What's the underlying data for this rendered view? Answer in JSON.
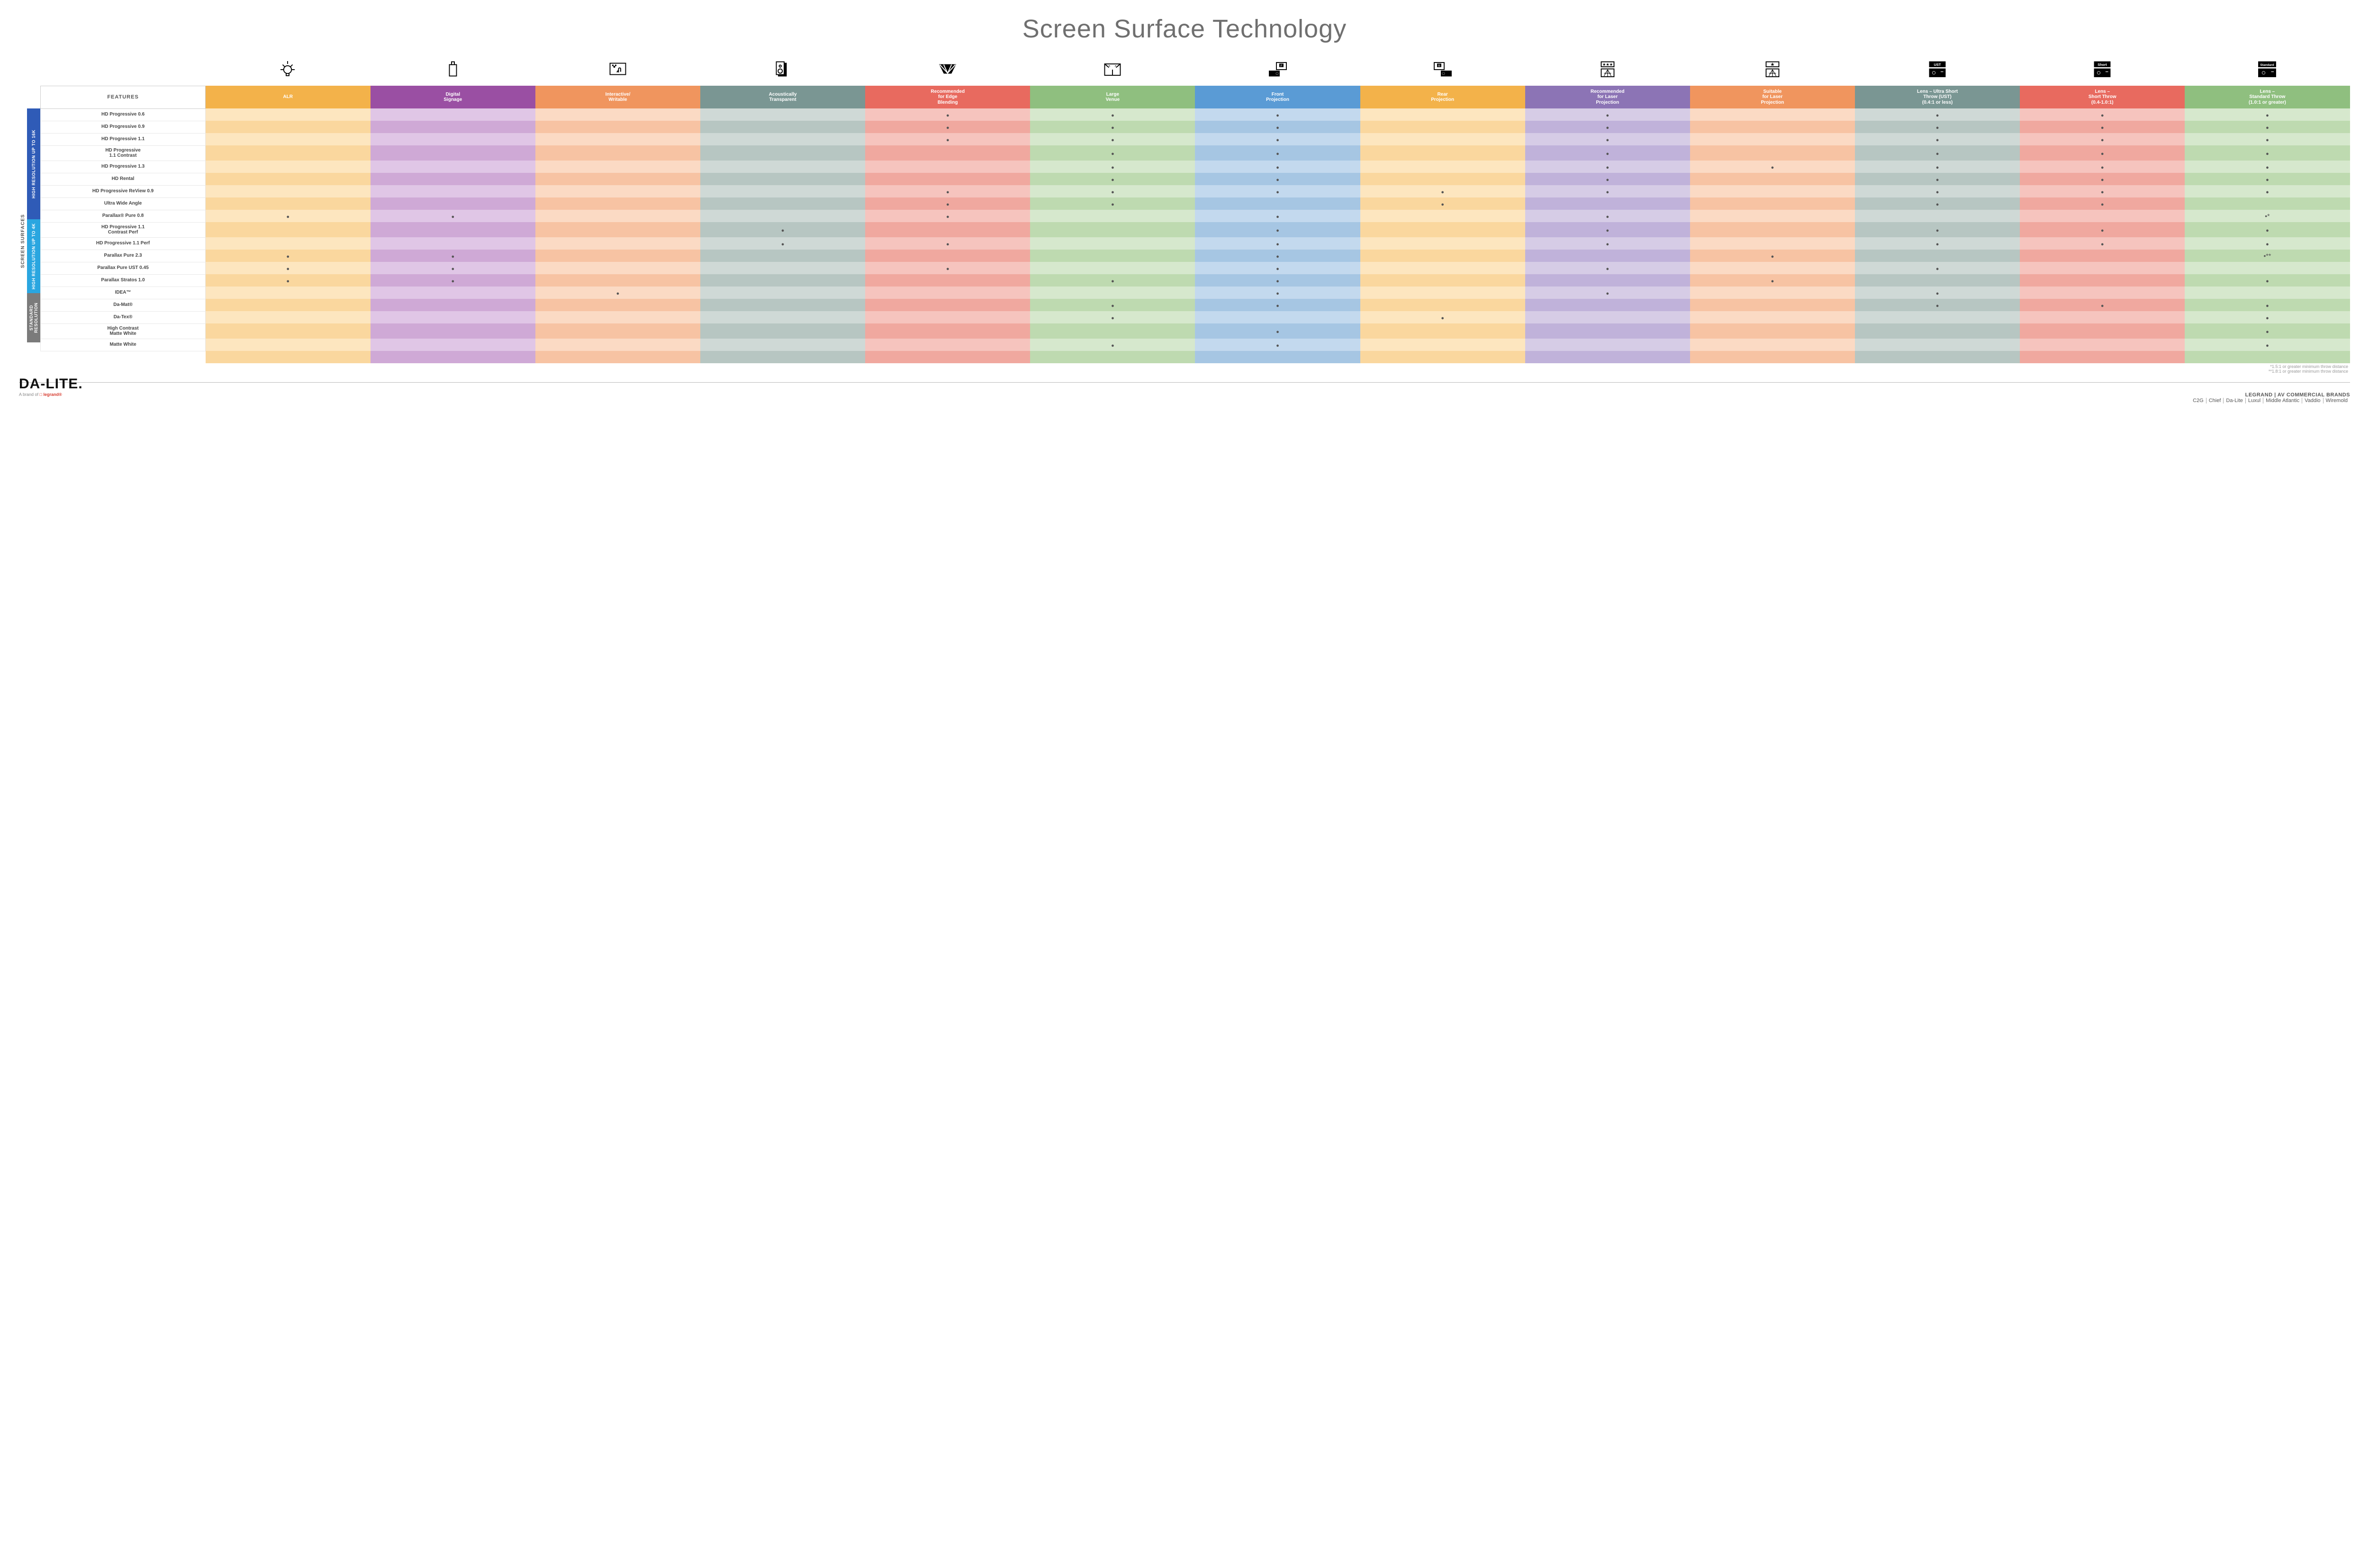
{
  "title": "Screen Surface Technology",
  "colors": {
    "headers": [
      "#f3b24a",
      "#9a4fa3",
      "#f0955e",
      "#7a9693",
      "#e86a5f",
      "#8fbf7f",
      "#5a9bd5",
      "#f3b24a",
      "#8c74b5",
      "#f0955e",
      "#7a9693",
      "#e86a5f",
      "#8fbf7f"
    ],
    "groups": {
      "g16k": "#2f5bb7",
      "g4k": "#2aa6e0",
      "gstd": "#7b7b7b"
    },
    "light": [
      "#fde6bf",
      "#e0c6e6",
      "#fbdac4",
      "#cfd9d6",
      "#f6c4be",
      "#d6e8cd",
      "#c3d9ee",
      "#fde6bf",
      "#d6cce6",
      "#fbdac4",
      "#cfd9d6",
      "#f6c4be",
      "#d6e8cd"
    ],
    "dark": [
      "#fad79e",
      "#cfa9d6",
      "#f7c3a3",
      "#b7c6c2",
      "#f0a89f",
      "#bedab0",
      "#a6c6e3",
      "#fad79e",
      "#c0b2da",
      "#f7c3a3",
      "#b7c6c2",
      "#f0a89f",
      "#bedab0"
    ]
  },
  "feature_header": "FEATURES",
  "columns": [
    {
      "label": "ALR",
      "icon": "bulb"
    },
    {
      "label": "Digital\nSignage",
      "icon": "signage"
    },
    {
      "label": "Interactive/\nWritable",
      "icon": "touch"
    },
    {
      "label": "Acoustically\nTransparent",
      "icon": "speaker"
    },
    {
      "label": "Recommended\nfor Edge\nBlending",
      "icon": "blend"
    },
    {
      "label": "Large\nVenue",
      "icon": "venue"
    },
    {
      "label": "Front\nProjection",
      "icon": "front"
    },
    {
      "label": "Rear\nProjection",
      "icon": "rear"
    },
    {
      "label": "Recommended\nfor Laser\nProjection",
      "icon": "laser3"
    },
    {
      "label": "Suitable\nfor Laser\nProjection",
      "icon": "laser1"
    },
    {
      "label": "Lens – Ultra Short\nThrow (UST)\n(0.4:1 or less)",
      "icon": "ust"
    },
    {
      "label": "Lens –\nShort Throw\n(0.4-1.0:1)",
      "icon": "short"
    },
    {
      "label": "Lens –\nStandard Throw\n(1.0:1 or greater)",
      "icon": "standard"
    }
  ],
  "side_label": "SCREEN SURFACES",
  "groups": [
    {
      "key": "g16k",
      "label": "HIGH RESOLUTION UP TO 16K",
      "rows": [
        {
          "name": "HD Progressive 0.6",
          "marks": [
            0,
            0,
            0,
            0,
            1,
            1,
            1,
            0,
            1,
            0,
            1,
            1,
            1
          ]
        },
        {
          "name": "HD Progressive 0.9",
          "marks": [
            0,
            0,
            0,
            0,
            1,
            1,
            1,
            0,
            1,
            0,
            1,
            1,
            1
          ]
        },
        {
          "name": "HD Progressive 1.1",
          "marks": [
            0,
            0,
            0,
            0,
            1,
            1,
            1,
            0,
            1,
            0,
            1,
            1,
            1
          ]
        },
        {
          "name": "HD Progressive\n1.1 Contrast",
          "marks": [
            0,
            0,
            0,
            0,
            0,
            1,
            1,
            0,
            1,
            0,
            1,
            1,
            1
          ]
        },
        {
          "name": "HD Progressive 1.3",
          "marks": [
            0,
            0,
            0,
            0,
            0,
            1,
            1,
            0,
            1,
            1,
            1,
            1,
            1
          ]
        },
        {
          "name": "HD Rental",
          "marks": [
            0,
            0,
            0,
            0,
            0,
            1,
            1,
            0,
            1,
            0,
            1,
            1,
            1
          ]
        },
        {
          "name": "HD Progressive ReView 0.9",
          "marks": [
            0,
            0,
            0,
            0,
            1,
            1,
            1,
            1,
            1,
            0,
            1,
            1,
            1
          ]
        },
        {
          "name": "Ultra Wide Angle",
          "marks": [
            0,
            0,
            0,
            0,
            1,
            1,
            0,
            1,
            0,
            0,
            1,
            1,
            0
          ]
        },
        {
          "name": "Parallax® Pure 0.8",
          "marks": [
            1,
            1,
            0,
            0,
            1,
            0,
            1,
            0,
            1,
            0,
            0,
            0,
            "•*"
          ]
        }
      ]
    },
    {
      "key": "g4k",
      "label": "HIGH RESOLUTION UP TO 4K",
      "rows": [
        {
          "name": "HD Progressive 1.1\nContrast Perf",
          "marks": [
            0,
            0,
            0,
            1,
            0,
            0,
            1,
            0,
            1,
            0,
            1,
            1,
            1
          ]
        },
        {
          "name": "HD Progressive 1.1 Perf",
          "marks": [
            0,
            0,
            0,
            1,
            1,
            0,
            1,
            0,
            1,
            0,
            1,
            1,
            1
          ]
        },
        {
          "name": "Parallax Pure 2.3",
          "marks": [
            1,
            1,
            0,
            0,
            0,
            0,
            1,
            0,
            0,
            1,
            0,
            0,
            "•**"
          ]
        },
        {
          "name": "Parallax Pure UST 0.45",
          "marks": [
            1,
            1,
            0,
            0,
            1,
            0,
            1,
            0,
            1,
            0,
            1,
            0,
            0
          ]
        },
        {
          "name": "Parallax Stratos 1.0",
          "marks": [
            1,
            1,
            0,
            0,
            0,
            1,
            1,
            0,
            0,
            1,
            0,
            0,
            1
          ]
        },
        {
          "name": "IDEA™",
          "marks": [
            0,
            0,
            1,
            0,
            0,
            0,
            1,
            0,
            1,
            0,
            1,
            0,
            0
          ]
        }
      ]
    },
    {
      "key": "gstd",
      "label": "STANDARD\nRESOLUTION",
      "rows": [
        {
          "name": "Da-Mat®",
          "marks": [
            0,
            0,
            0,
            0,
            0,
            1,
            1,
            0,
            0,
            0,
            1,
            1,
            1
          ]
        },
        {
          "name": "Da-Tex®",
          "marks": [
            0,
            0,
            0,
            0,
            0,
            1,
            0,
            1,
            0,
            0,
            0,
            0,
            1
          ]
        },
        {
          "name": "High Contrast\nMatte White",
          "marks": [
            0,
            0,
            0,
            0,
            0,
            0,
            1,
            0,
            0,
            0,
            0,
            0,
            1
          ]
        },
        {
          "name": "Matte White",
          "marks": [
            0,
            0,
            0,
            0,
            0,
            1,
            1,
            0,
            0,
            0,
            0,
            0,
            1
          ]
        }
      ]
    }
  ],
  "footnotes": [
    "*1.5:1 or greater minimum throw distance",
    "**1.8:1 or greater minimum throw distance"
  ],
  "footer": {
    "brand_main": "DA-LITE.",
    "brand_sub_prefix": "A brand of ",
    "brand_sub_logo": "legrand",
    "right_top": "LEGRAND | AV COMMERCIAL BRANDS",
    "brands": [
      "C2G",
      "Chief",
      "Da-Lite",
      "Luxul",
      "Middle Atlantic",
      "Vaddio",
      "Wiremold"
    ]
  }
}
